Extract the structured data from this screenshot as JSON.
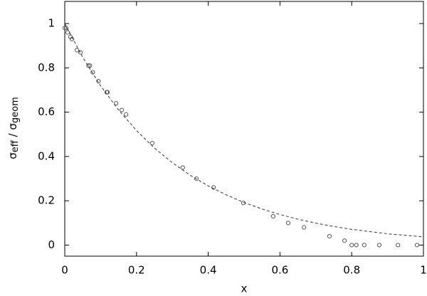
{
  "chart_data": {
    "type": "scatter",
    "xlabel": "x",
    "ylabel": [
      "σ",
      "eff",
      " / σ",
      "geom"
    ],
    "xlim": [
      0,
      1
    ],
    "ylim": [
      -0.05,
      1.1
    ],
    "xticks": [
      0,
      0.2,
      0.4,
      0.6,
      0.8,
      1
    ],
    "yticks": [
      0,
      0.2,
      0.4,
      0.6,
      0.8,
      1
    ],
    "series": [
      {
        "color": "#555555",
        "marker": "circle",
        "x": [
          0,
          0.004,
          0.008,
          0.016,
          0.02,
          0.034,
          0.044,
          0.066,
          0.07,
          0.078,
          0.094,
          0.117,
          0.119,
          0.143,
          0.159,
          0.171,
          0.244,
          0.329,
          0.367,
          0.415,
          0.498,
          0.581,
          0.623,
          0.667,
          0.738,
          0.78,
          0.8,
          0.813,
          0.835,
          0.877,
          0.929,
          0.982
        ],
        "values": [
          0.98,
          0.98,
          0.96,
          0.94,
          0.93,
          0.88,
          0.87,
          0.81,
          0.81,
          0.78,
          0.74,
          0.69,
          0.69,
          0.64,
          0.61,
          0.59,
          0.46,
          0.35,
          0.3,
          0.26,
          0.19,
          0.13,
          0.1,
          0.08,
          0.04,
          0.02,
          0,
          0,
          0,
          0,
          0,
          0
        ]
      },
      {
        "color": "#333333",
        "line": "dashed",
        "x": [
          0,
          0.05,
          0.1,
          0.15,
          0.2,
          0.25,
          0.3,
          0.35,
          0.4,
          0.45,
          0.5,
          0.55,
          0.6,
          0.65,
          0.7,
          0.75,
          0.8,
          0.85,
          0.9,
          0.95,
          1
        ],
        "values": [
          1,
          0.848,
          0.719,
          0.61,
          0.517,
          0.438,
          0.372,
          0.315,
          0.267,
          0.227,
          0.192,
          0.163,
          0.138,
          0.117,
          0.099,
          0.084,
          0.071,
          0.061,
          0.051,
          0.044,
          0.037
        ]
      }
    ]
  }
}
